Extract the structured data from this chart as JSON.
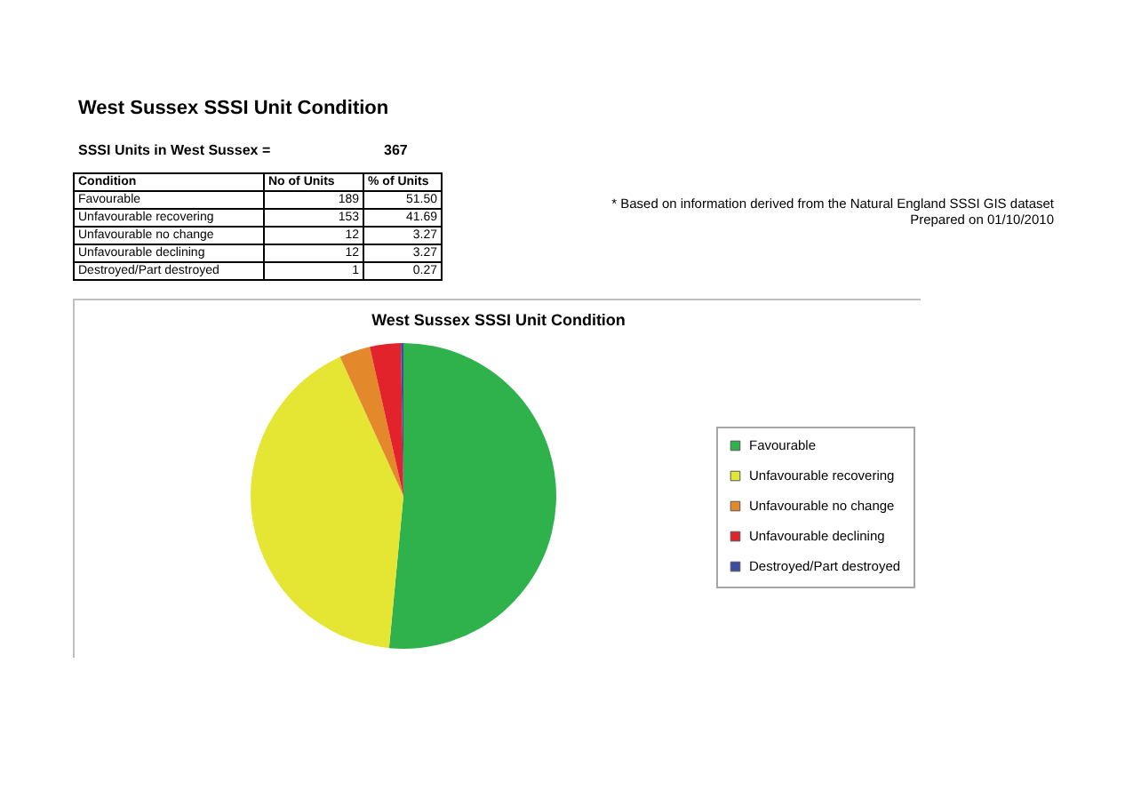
{
  "chart_data": {
    "type": "pie",
    "title": "West Sussex SSSI Unit Condition",
    "categories": [
      "Favourable",
      "Unfavourable recovering",
      "Unfavourable no change",
      "Unfavourable declining",
      "Destroyed/Part destroyed"
    ],
    "values": [
      51.5,
      41.69,
      3.27,
      3.27,
      0.27
    ],
    "colors": [
      "#2fb24c",
      "#e5e534",
      "#e3892b",
      "#e3232c",
      "#3b4ea3"
    ],
    "legend": "right",
    "annotations": [
      "West Sussex SSSI Unit Condition",
      "SSSI Units in West Sussex =",
      "367",
      "Condition",
      "No of Units",
      "% of Units",
      "* Based on information derived from the Natural England SSSI GIS dataset",
      "Prepared on 01/10/2010",
      "51.50",
      "41.69",
      "3.27",
      "3.27",
      "0.27",
      "189",
      "153",
      "12",
      "12",
      "1"
    ]
  }
}
